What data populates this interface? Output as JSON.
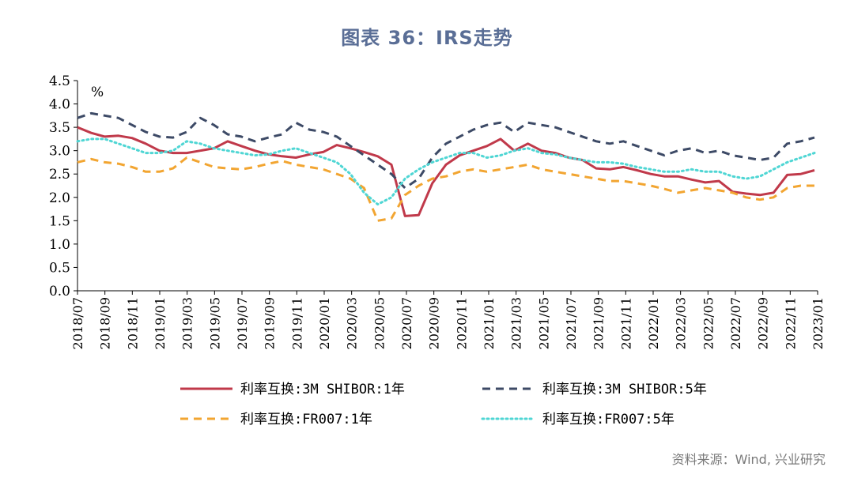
{
  "title": "图表 36：IRS走势",
  "source": "资料来源：Wind, 兴业研究",
  "chart_data": {
    "type": "line",
    "y_unit": "%",
    "ylim": [
      0.0,
      4.5
    ],
    "y_ticks": [
      "0.0",
      "0.5",
      "1.0",
      "1.5",
      "2.0",
      "2.5",
      "3.0",
      "3.5",
      "4.0",
      "4.5"
    ],
    "x_ticks": [
      "2018/07",
      "2018/09",
      "2018/11",
      "2019/01",
      "2019/03",
      "2019/05",
      "2019/07",
      "2019/09",
      "2019/11",
      "2020/01",
      "2020/03",
      "2020/05",
      "2020/07",
      "2020/09",
      "2020/11",
      "2021/01",
      "2021/03",
      "2021/05",
      "2021/07",
      "2021/09",
      "2021/11",
      "2022/01",
      "2022/03",
      "2022/05",
      "2022/07",
      "2022/09",
      "2022/11",
      "2023/01"
    ],
    "grid": false,
    "legend_position": "bottom",
    "series": [
      {
        "name": "利率互换:3M SHIBOR:1年",
        "color": "#c0394a",
        "style": "solid",
        "values": [
          3.5,
          3.38,
          3.3,
          3.32,
          3.27,
          3.15,
          3.0,
          2.95,
          2.95,
          3.0,
          3.05,
          3.2,
          3.1,
          3.0,
          2.92,
          2.88,
          2.85,
          2.92,
          2.97,
          3.12,
          3.05,
          2.97,
          2.88,
          2.7,
          1.6,
          1.62,
          2.3,
          2.7,
          2.9,
          3.0,
          3.1,
          3.25,
          3.0,
          3.15,
          3.0,
          2.95,
          2.85,
          2.8,
          2.62,
          2.6,
          2.65,
          2.58,
          2.5,
          2.45,
          2.45,
          2.38,
          2.32,
          2.35,
          2.12,
          2.08,
          2.05,
          2.1,
          2.48,
          2.5,
          2.58
        ]
      },
      {
        "name": "利率互换:3M SHIBOR:5年",
        "color": "#3d4a66",
        "style": "dash",
        "values": [
          3.7,
          3.8,
          3.75,
          3.7,
          3.55,
          3.4,
          3.3,
          3.28,
          3.4,
          3.7,
          3.55,
          3.35,
          3.3,
          3.2,
          3.28,
          3.35,
          3.6,
          3.45,
          3.4,
          3.3,
          3.1,
          2.9,
          2.7,
          2.5,
          2.2,
          2.4,
          2.85,
          3.15,
          3.3,
          3.45,
          3.55,
          3.6,
          3.4,
          3.6,
          3.55,
          3.5,
          3.4,
          3.3,
          3.2,
          3.15,
          3.2,
          3.1,
          3.0,
          2.9,
          3.0,
          3.05,
          2.95,
          3.0,
          2.9,
          2.85,
          2.8,
          2.85,
          3.15,
          3.2,
          3.28
        ]
      },
      {
        "name": "利率互换:FR007:1年",
        "color": "#f2a531",
        "style": "dash",
        "values": [
          2.75,
          2.82,
          2.75,
          2.72,
          2.65,
          2.55,
          2.55,
          2.62,
          2.85,
          2.75,
          2.65,
          2.62,
          2.6,
          2.65,
          2.72,
          2.78,
          2.7,
          2.65,
          2.6,
          2.5,
          2.4,
          2.2,
          1.5,
          1.55,
          2.05,
          2.25,
          2.4,
          2.45,
          2.55,
          2.6,
          2.55,
          2.6,
          2.65,
          2.7,
          2.6,
          2.55,
          2.5,
          2.45,
          2.4,
          2.35,
          2.35,
          2.3,
          2.25,
          2.18,
          2.1,
          2.15,
          2.2,
          2.15,
          2.1,
          2.0,
          1.95,
          2.0,
          2.2,
          2.25,
          2.25
        ]
      },
      {
        "name": "利率互换:FR007:5年",
        "color": "#4fd6d4",
        "style": "dot",
        "values": [
          3.2,
          3.25,
          3.25,
          3.15,
          3.05,
          2.95,
          2.95,
          3.0,
          3.2,
          3.15,
          3.05,
          3.0,
          2.95,
          2.9,
          2.92,
          3.0,
          3.05,
          2.95,
          2.85,
          2.75,
          2.5,
          2.1,
          1.85,
          2.0,
          2.4,
          2.6,
          2.75,
          2.85,
          2.95,
          2.95,
          2.85,
          2.9,
          3.0,
          3.05,
          2.95,
          2.92,
          2.85,
          2.8,
          2.75,
          2.75,
          2.72,
          2.65,
          2.6,
          2.55,
          2.55,
          2.6,
          2.55,
          2.55,
          2.45,
          2.4,
          2.45,
          2.6,
          2.75,
          2.85,
          2.95
        ]
      }
    ]
  }
}
